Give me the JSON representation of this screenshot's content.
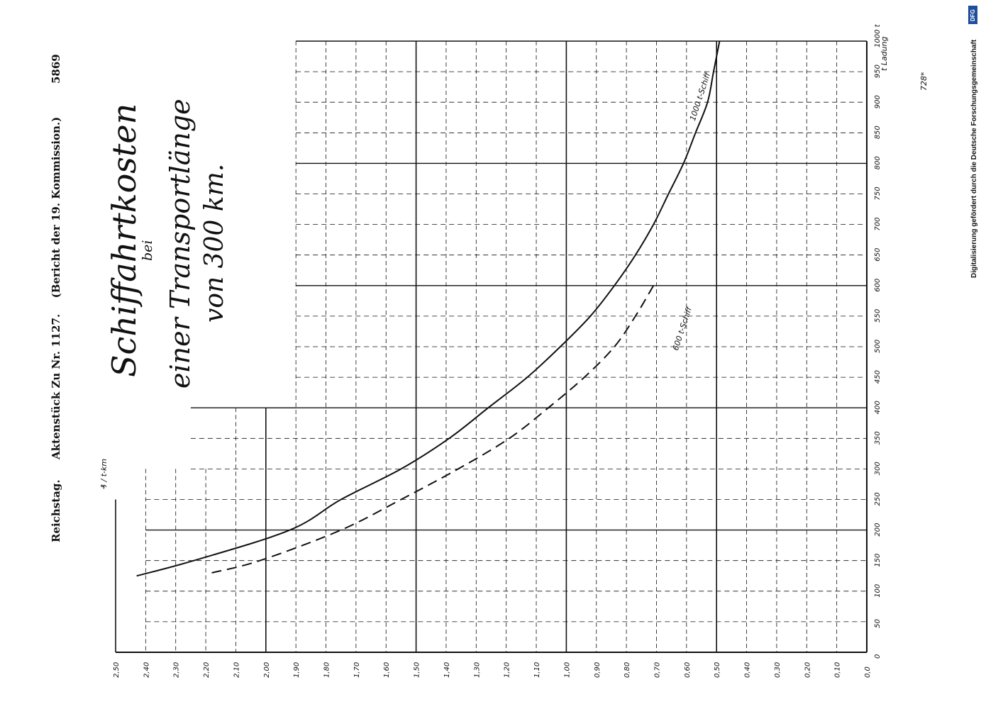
{
  "header": {
    "reichstag": "Reichstag.",
    "aktenstueck": "Aktenstück Zu Nr. 1127.",
    "bericht": "(Bericht der 19. Kommission.)",
    "page_number": "5869"
  },
  "side_note": "Digitalisierung gefördert durch die Deutsche Forschungsgemeinschaft",
  "dfg_badge": "DFG",
  "corner_note": "728*",
  "colors": {
    "ink": "#111111",
    "paper": "#ffffff",
    "dfg_blue": "#1f4e9c"
  },
  "chart_data": {
    "type": "line",
    "orientation": "rotated-90-ccw",
    "title": "Schiffahrtkosten",
    "subtitle": [
      "bei",
      "einer Transportlänge",
      "von 300 km."
    ],
    "xlabel": "t Ladung",
    "ylabel": "₰ / t-km",
    "x_ticks": [
      "0",
      "50",
      "100",
      "150",
      "200",
      "250",
      "300",
      "350",
      "400",
      "450",
      "500",
      "550",
      "600",
      "650",
      "700",
      "750",
      "800",
      "850",
      "900",
      "950",
      "1000 t"
    ],
    "y_ticks": [
      "0,0",
      "0,10",
      "0,20",
      "0,30",
      "0,40",
      "0,50",
      "0,60",
      "0,70",
      "0,80",
      "0,90",
      "1,00",
      "1,10",
      "1,20",
      "1,30",
      "1,40",
      "1,50",
      "1,60",
      "1,70",
      "1,80",
      "1,90",
      "2,00",
      "2,10",
      "2,20",
      "2,30",
      "2,40",
      "2,50"
    ],
    "xlim": [
      0,
      1000
    ],
    "ylim": [
      0,
      2.5
    ],
    "grid": true,
    "series": [
      {
        "name": "1000 t-Schiff",
        "style": "solid",
        "x": [
          125,
          150,
          200,
          250,
          300,
          350,
          400,
          450,
          500,
          550,
          600,
          650,
          700,
          750,
          800,
          850,
          900,
          950,
          1000
        ],
        "y": [
          2.43,
          2.24,
          1.92,
          1.75,
          1.55,
          1.39,
          1.26,
          1.13,
          1.02,
          0.92,
          0.84,
          0.77,
          0.71,
          0.66,
          0.61,
          0.57,
          0.53,
          0.51,
          0.49
        ]
      },
      {
        "name": "600 t-Schiff",
        "style": "dashed",
        "x": [
          130,
          150,
          200,
          250,
          300,
          350,
          400,
          450,
          500,
          550,
          600
        ],
        "y": [
          2.18,
          2.02,
          1.75,
          1.55,
          1.36,
          1.19,
          1.06,
          0.94,
          0.84,
          0.77,
          0.71
        ]
      }
    ]
  }
}
